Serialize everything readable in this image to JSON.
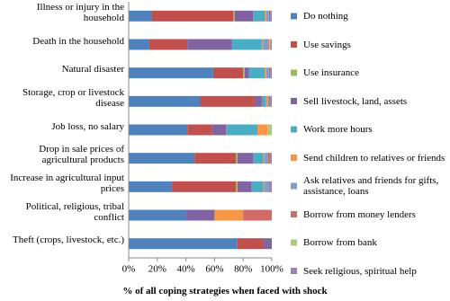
{
  "chart_data": {
    "type": "stacked-barh",
    "xlabel": "% of all coping strategies when faced with shock",
    "categories": [
      "Illness or injury in the household",
      "Death in the household",
      "Natural disaster",
      "Storage, crop or livestock disease",
      "Job loss, no salary",
      "Drop in sale prices of agricultural products",
      "Increase in agricultural input prices",
      "Political, religious, tribal conflict",
      "Theft (crops, livestock, etc.)"
    ],
    "series": [
      {
        "name": "Do nothing",
        "color": "#4f81bd",
        "values": [
          16,
          14,
          59,
          50,
          41,
          46,
          30,
          40,
          76
        ]
      },
      {
        "name": "Use savings",
        "color": "#c0504d",
        "values": [
          57,
          27,
          21,
          38,
          17,
          29,
          45,
          0,
          18
        ]
      },
      {
        "name": "Use insurance",
        "color": "#9bbb59",
        "values": [
          1,
          0,
          1,
          0,
          0,
          1,
          1,
          0,
          0
        ]
      },
      {
        "name": "Sell livestock, land, assets",
        "color": "#8064a2",
        "values": [
          13,
          31,
          3,
          5,
          10,
          11,
          10,
          20,
          6
        ]
      },
      {
        "name": "Work more hours",
        "color": "#4bacc6",
        "values": [
          8,
          21,
          11,
          3,
          22,
          7,
          8,
          0,
          0
        ]
      },
      {
        "name": "Send children to relatives or friends",
        "color": "#f79646",
        "values": [
          1,
          1,
          1,
          1,
          7,
          1,
          1,
          20,
          0
        ]
      },
      {
        "name": "Ask relatives and friends for gifts, assistance, loans",
        "color": "#7ba0cd",
        "values": [
          2,
          3,
          2,
          1,
          0,
          2,
          3,
          0,
          0
        ]
      },
      {
        "name": "Borrow from money lenders",
        "color": "#d06b68",
        "values": [
          1,
          1,
          1,
          1,
          0,
          2,
          1,
          20,
          0
        ]
      },
      {
        "name": "Borrow from bank",
        "color": "#afc97a",
        "values": [
          0,
          1,
          0,
          0,
          3,
          0,
          0,
          0,
          0
        ]
      },
      {
        "name": "Seek religious, spiritual help",
        "color": "#9983b5",
        "values": [
          1,
          1,
          1,
          1,
          0,
          1,
          1,
          0,
          0
        ]
      }
    ],
    "xlim": [
      0,
      100
    ],
    "xticks": [
      {
        "value": 0,
        "label": "0%"
      },
      {
        "value": 20,
        "label": "20%"
      },
      {
        "value": 40,
        "label": "40%"
      },
      {
        "value": 60,
        "label": "60%"
      },
      {
        "value": 80,
        "label": "80%"
      },
      {
        "value": 100,
        "label": "100%"
      }
    ]
  }
}
